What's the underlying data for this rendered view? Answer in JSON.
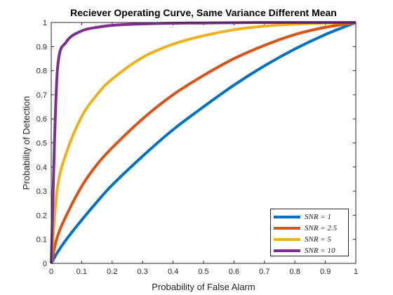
{
  "chart_data": {
    "type": "line",
    "title": "Reciever Operating Curve, Same Variance Different Mean",
    "xlabel": "Probability of False Alarm",
    "ylabel": "Probability of Detection",
    "xlim": [
      0,
      1
    ],
    "ylim": [
      0,
      1
    ],
    "xticks": [
      "0",
      "0.1",
      "0.2",
      "0.3",
      "0.4",
      "0.5",
      "0.6",
      "0.7",
      "0.8",
      "0.9",
      "1"
    ],
    "yticks": [
      "0",
      "0.1",
      "0.2",
      "0.3",
      "0.4",
      "0.5",
      "0.6",
      "0.7",
      "0.8",
      "0.9",
      "1"
    ],
    "grid": false,
    "legend_position": "bottom-right",
    "x": [
      0,
      0.02,
      0.05,
      0.1,
      0.15,
      0.2,
      0.3,
      0.4,
      0.5,
      0.6,
      0.7,
      0.8,
      0.9,
      1
    ],
    "series": [
      {
        "name": "SNR = 1",
        "color": "#0072BD",
        "values": [
          0,
          0.045,
          0.1,
          0.18,
          0.255,
          0.325,
          0.445,
          0.555,
          0.65,
          0.74,
          0.82,
          0.89,
          0.95,
          1
        ]
      },
      {
        "name": "SNR = 2.5",
        "color": "#D95319",
        "values": [
          0,
          0.11,
          0.2,
          0.32,
          0.41,
          0.48,
          0.6,
          0.7,
          0.78,
          0.85,
          0.905,
          0.95,
          0.98,
          1
        ]
      },
      {
        "name": "SNR = 5",
        "color": "#EDB120",
        "values": [
          0,
          0.31,
          0.46,
          0.61,
          0.7,
          0.765,
          0.855,
          0.91,
          0.945,
          0.97,
          0.985,
          0.993,
          0.998,
          1
        ]
      },
      {
        "name": "SNR = 10",
        "color": "#7E2F8E",
        "values": [
          0,
          0.8,
          0.92,
          0.965,
          0.98,
          0.988,
          0.994,
          0.997,
          0.998,
          0.999,
          1,
          1,
          1,
          1
        ]
      }
    ]
  }
}
